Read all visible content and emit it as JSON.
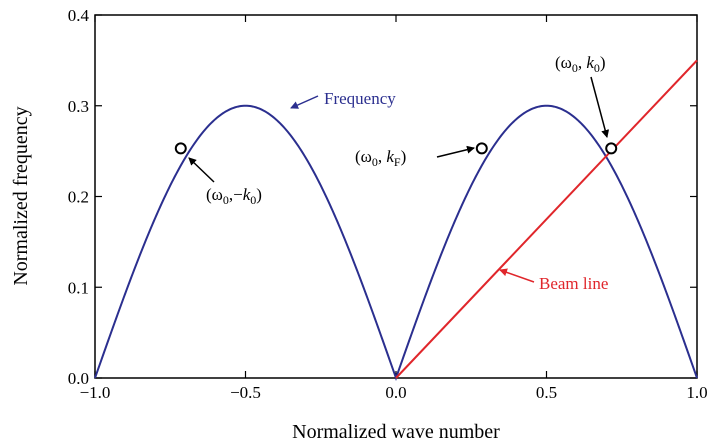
{
  "chart_data": {
    "type": "line",
    "title": "",
    "xlabel": "Normalized wave number",
    "ylabel": "Normalized frequency",
    "xlim": [
      -1.0,
      1.0
    ],
    "ylim": [
      0.0,
      0.4
    ],
    "x_ticks": [
      -1.0,
      -0.5,
      0.0,
      0.5,
      1.0
    ],
    "x_tick_labels": [
      "−1.0",
      "−0.5",
      "0.0",
      "0.5",
      "1.0"
    ],
    "y_ticks": [
      0.0,
      0.1,
      0.2,
      0.3,
      0.4
    ],
    "y_tick_labels": [
      "0.0",
      "0.1",
      "0.2",
      "0.3",
      "0.4"
    ],
    "grid": false,
    "legend": "none",
    "series": [
      {
        "name": "Frequency",
        "color": "#2b2f8f",
        "function": "0.3*|sin(pi*x)|",
        "x": [
          -1.0,
          -0.9,
          -0.8,
          -0.7,
          -0.6,
          -0.5,
          -0.4,
          -0.3,
          -0.2,
          -0.1,
          0.0,
          0.1,
          0.2,
          0.3,
          0.4,
          0.5,
          0.6,
          0.7,
          0.8,
          0.9,
          1.0
        ],
        "y": [
          0.0,
          0.093,
          0.176,
          0.243,
          0.285,
          0.3,
          0.285,
          0.243,
          0.176,
          0.093,
          0.0,
          0.093,
          0.176,
          0.243,
          0.285,
          0.3,
          0.285,
          0.243,
          0.176,
          0.093,
          0.0
        ]
      },
      {
        "name": "Beam line",
        "color": "#e0262b",
        "x": [
          0.0,
          1.0
        ],
        "y": [
          0.0,
          0.35
        ]
      }
    ],
    "points": [
      {
        "x": -0.715,
        "y": 0.253
      },
      {
        "x": 0.285,
        "y": 0.253
      },
      {
        "x": 0.715,
        "y": 0.253
      }
    ],
    "annotations": [
      {
        "id": "frequency",
        "omega": "",
        "k": "Frequency",
        "sub": "",
        "color": "#2b2f8f"
      },
      {
        "id": "beam-line",
        "omega": "",
        "k": "Beam line",
        "sub": "",
        "color": "#e0262b"
      },
      {
        "id": "minus-k0",
        "omega": "ω",
        "omega_sub": "0",
        "sep": ",−",
        "k": "k",
        "sub": "0",
        "color": "#000000"
      },
      {
        "id": "kf",
        "omega": "ω",
        "omega_sub": "0",
        "sep": ", ",
        "k": "k",
        "sub": "F",
        "color": "#000000"
      },
      {
        "id": "k0",
        "omega": "ω",
        "omega_sub": "0",
        "sep": ", ",
        "k": "k",
        "sub": "0",
        "color": "#000000"
      }
    ]
  }
}
